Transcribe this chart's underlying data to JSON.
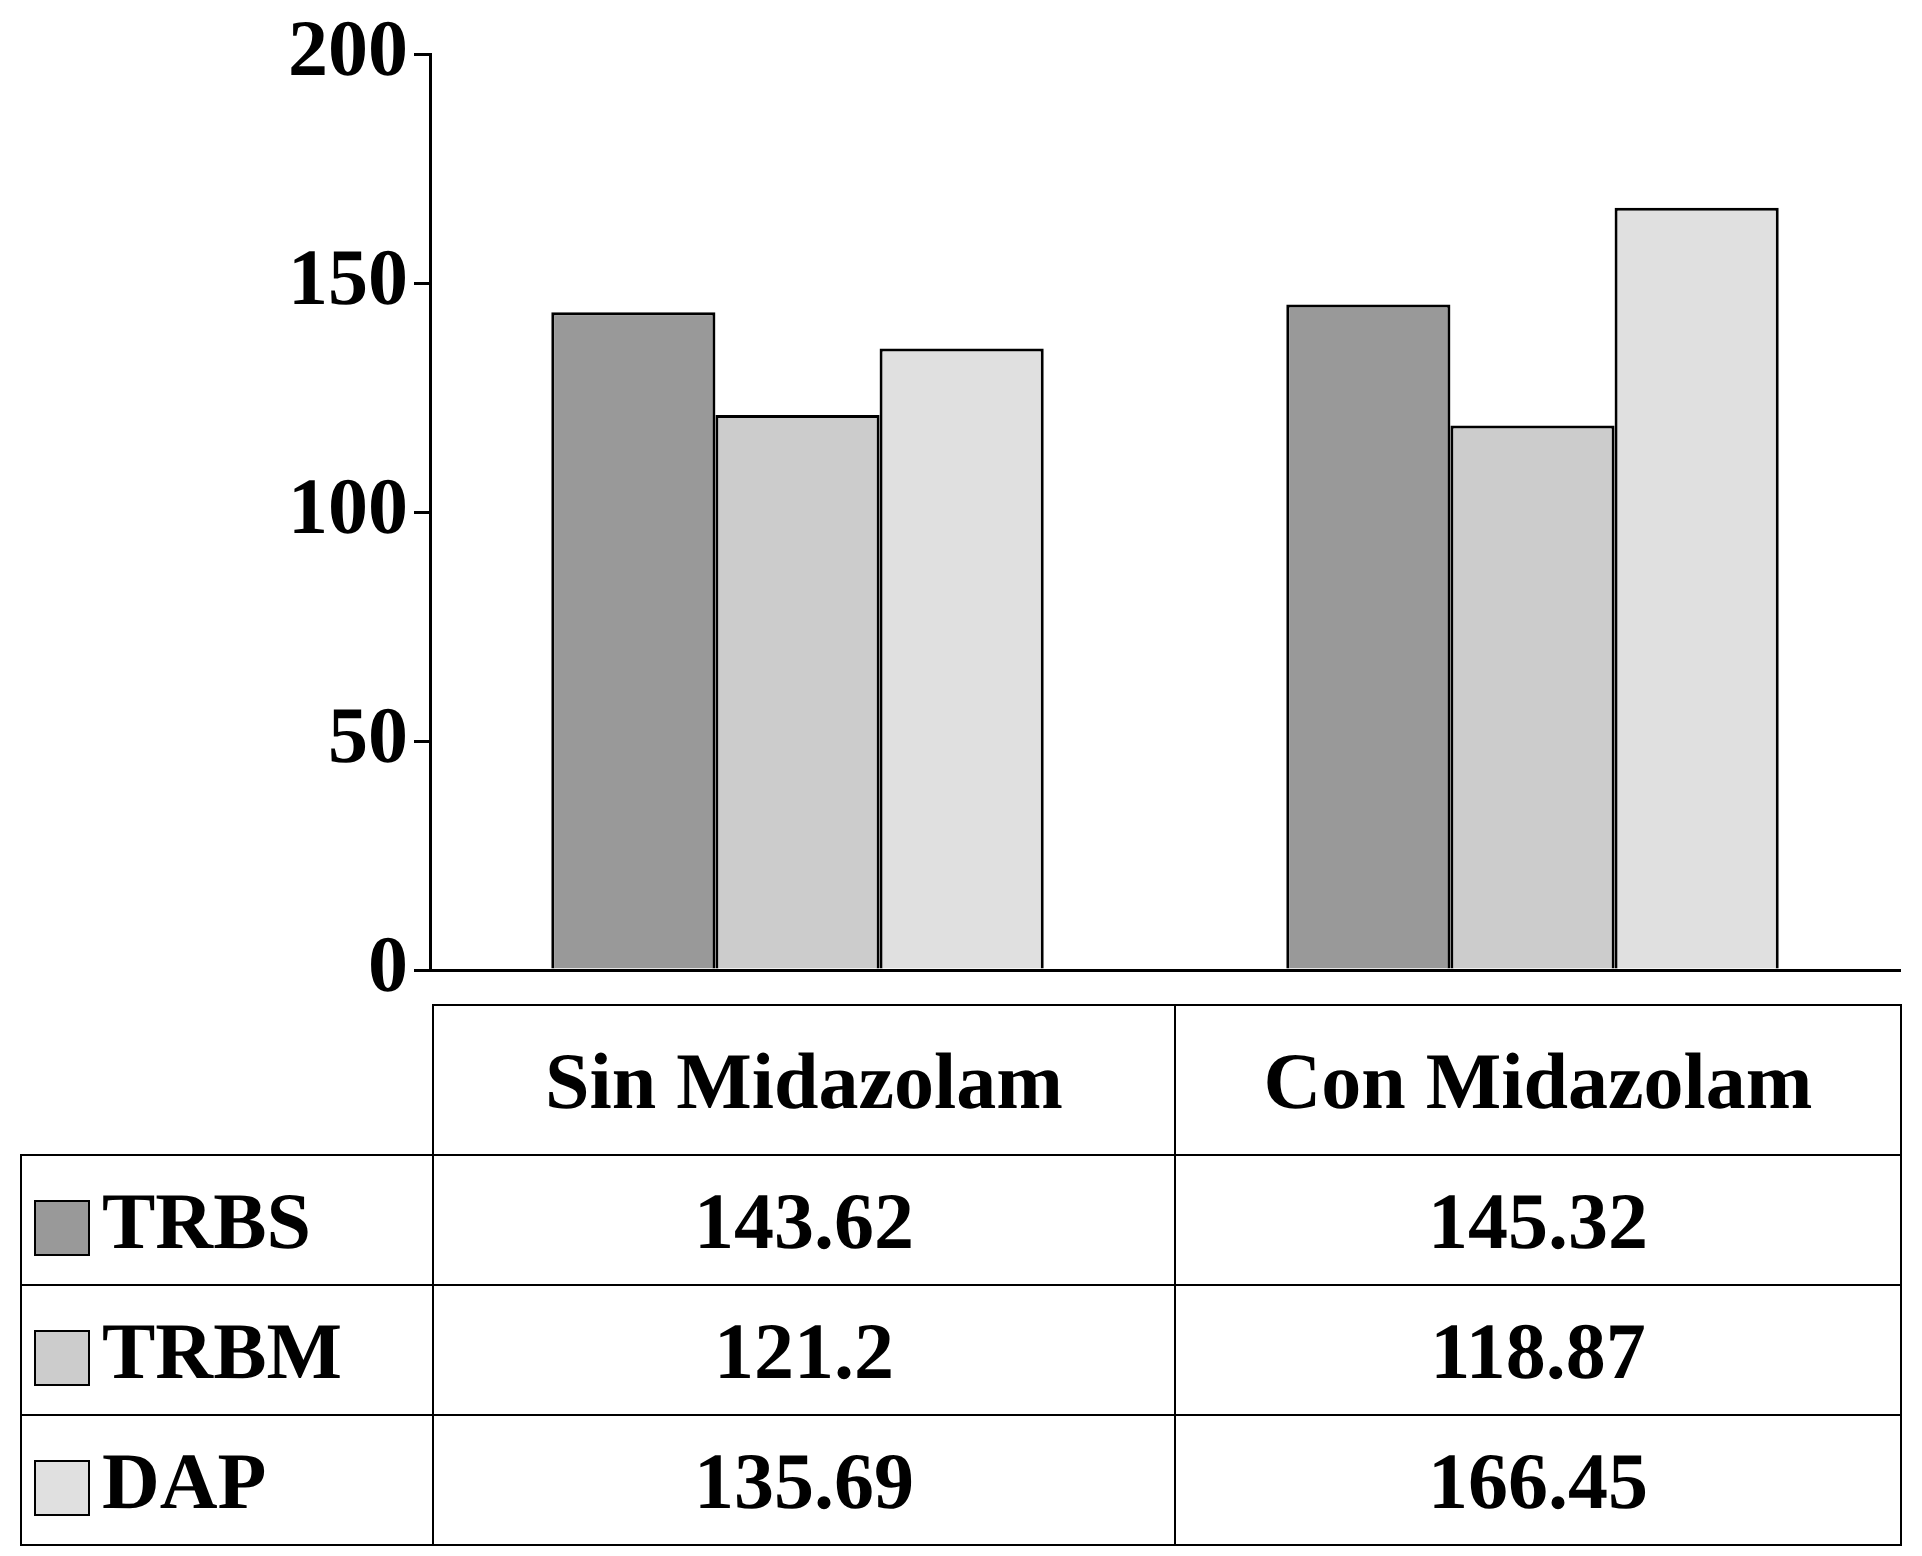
{
  "chart_data": {
    "type": "bar",
    "categories": [
      "Sin Midazolam",
      "Con Midazolam"
    ],
    "series": [
      {
        "name": "TRBS",
        "color": "#999999",
        "values": [
          143.62,
          145.32
        ]
      },
      {
        "name": "TRBM",
        "color": "#cccccc",
        "values": [
          121.2,
          118.87
        ]
      },
      {
        "name": "DAP",
        "color": "#e0e0e0",
        "values": [
          135.69,
          166.45
        ]
      }
    ],
    "ylim": [
      0,
      200
    ],
    "yticks": [
      0,
      50,
      100,
      150,
      200
    ],
    "grid": false,
    "legend": "bottom",
    "data_labels": true
  }
}
